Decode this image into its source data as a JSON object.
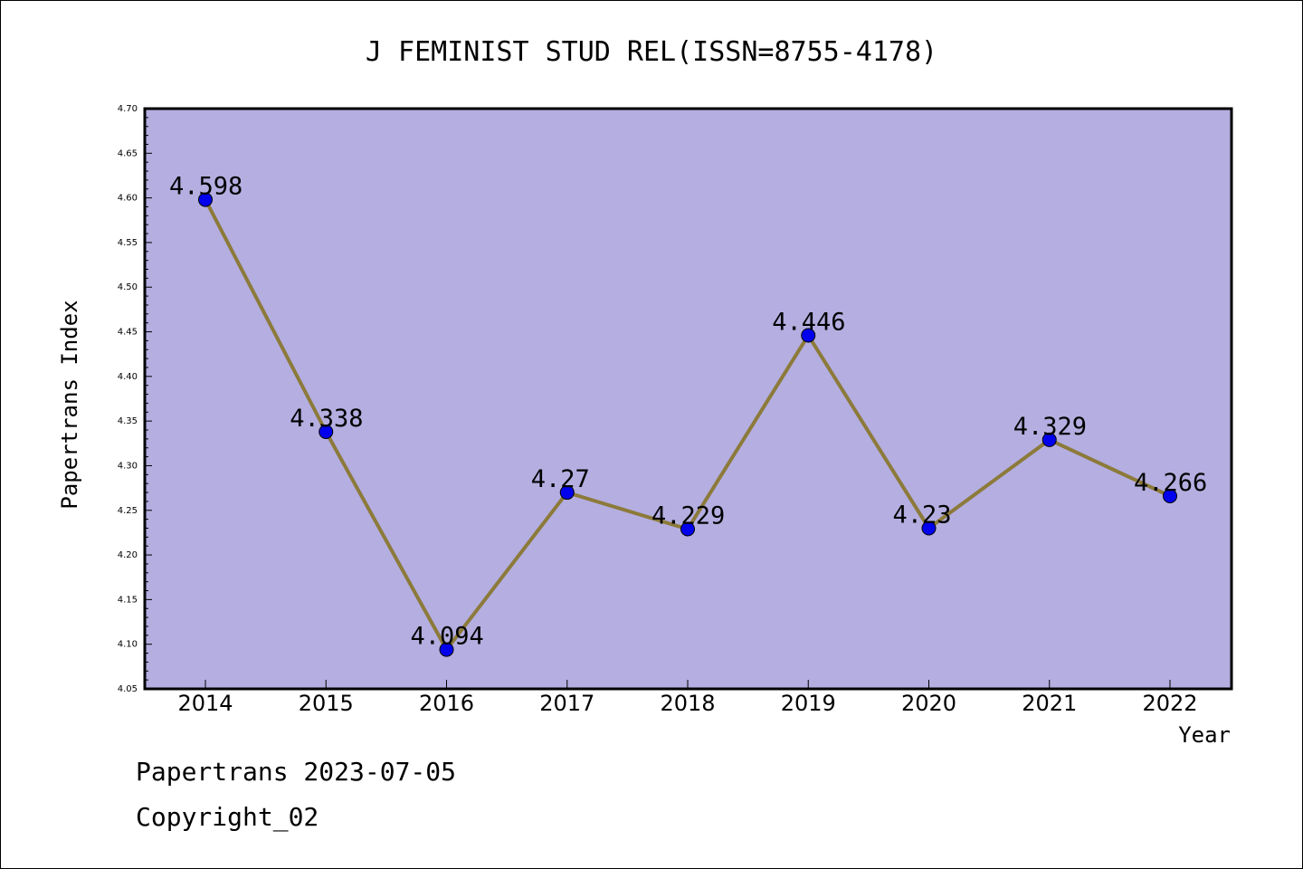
{
  "chart_data": {
    "type": "line",
    "title": "J FEMINIST STUD REL(ISSN=8755-4178)",
    "xlabel": "Year",
    "ylabel": "Papertrans Index",
    "categories": [
      "2014",
      "2015",
      "2016",
      "2017",
      "2018",
      "2019",
      "2020",
      "2021",
      "2022"
    ],
    "series": [
      {
        "values": [
          4.598,
          4.338,
          4.094,
          4.27,
          4.229,
          4.446,
          4.23,
          4.329,
          4.266
        ],
        "labels": [
          "4.598",
          "4.338",
          "4.094",
          "4.27",
          "4.229",
          "4.446",
          "4.23",
          "4.329",
          "4.266"
        ]
      }
    ],
    "ylim": [
      4.05,
      4.7
    ],
    "yticks": [
      "4.05",
      "4.10",
      "4.15",
      "4.20",
      "4.25",
      "4.30",
      "4.35",
      "4.40",
      "4.45",
      "4.50",
      "4.55",
      "4.60",
      "4.65",
      "4.70"
    ],
    "grid": false,
    "colors": {
      "plot_background": "#b4aee1",
      "line": "#8c7a3a",
      "marker": "#0000ee"
    }
  },
  "footer": {
    "date_text": "Papertrans 2023-07-05",
    "copyright_text": "Copyright_02"
  }
}
